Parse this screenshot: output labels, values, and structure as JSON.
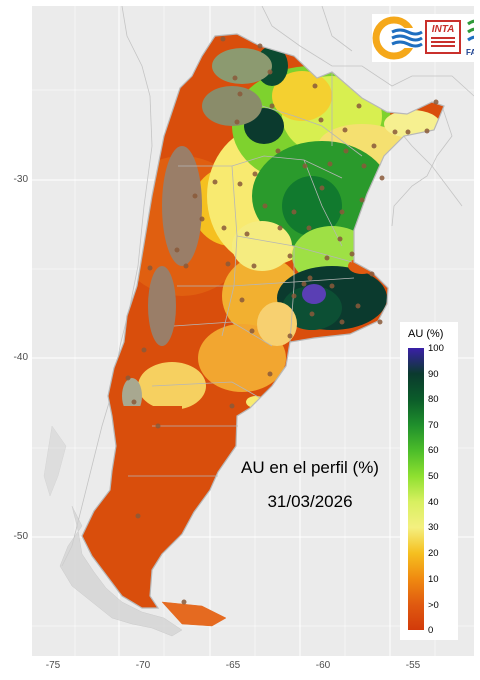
{
  "map": {
    "title_line1": "AU en el perfil (%)",
    "title_line2": "31/03/2026",
    "x_axis": {
      "ticks": [
        "-75",
        "-70",
        "-65",
        "-60",
        "-55"
      ]
    },
    "y_axis": {
      "ticks": [
        "-30",
        "-40",
        "-50"
      ]
    },
    "legend": {
      "title": "AU (%)",
      "labels": [
        "100",
        "90",
        "80",
        "70",
        "60",
        "50",
        "40",
        "30",
        "20",
        "10",
        ">0",
        "0"
      ],
      "colors": [
        "#3a1fa8",
        "#0b3a2e",
        "#0b5c2a",
        "#1f8f2c",
        "#4cbd2a",
        "#8fe030",
        "#d8f060",
        "#f4f080",
        "#f5c020",
        "#f08a10",
        "#e05a10",
        "#d23a0a"
      ]
    },
    "logos": {
      "inta_text": "INTA",
      "fauba_text": "FAUBA",
      "colors": {
        "orange": "#f5a81a",
        "blue": "#1f6fc0",
        "red": "#c9302c",
        "green": "#2e9a3a"
      }
    }
  }
}
